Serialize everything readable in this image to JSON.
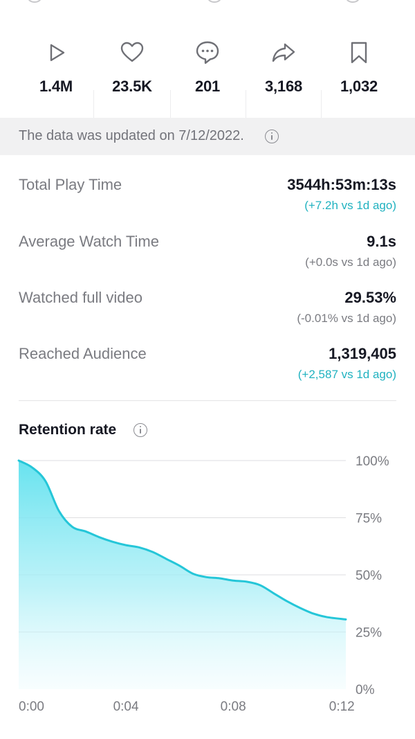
{
  "stats": [
    {
      "icon": "play-icon",
      "value": "1.4M"
    },
    {
      "icon": "heart-icon",
      "value": "23.5K"
    },
    {
      "icon": "comment-icon",
      "value": "201"
    },
    {
      "icon": "share-icon",
      "value": "3,168"
    },
    {
      "icon": "bookmark-icon",
      "value": "1,032"
    }
  ],
  "banner": {
    "text": "The data was updated on 7/12/2022."
  },
  "metrics": [
    {
      "label": "Total Play Time",
      "value": "3544h:53m:13s",
      "delta": "(+7.2h vs 1d ago)",
      "delta_color": "#20b2c0"
    },
    {
      "label": "Average Watch Time",
      "value": "9.1s",
      "delta": "(+0.0s vs 1d ago)",
      "delta_color": "#7a7b81"
    },
    {
      "label": "Watched full video",
      "value": "29.53%",
      "delta": "(-0.01% vs 1d ago)",
      "delta_color": "#7a7b81"
    },
    {
      "label": "Reached Audience",
      "value": "1,319,405",
      "delta": "(+2,587 vs 1d ago)",
      "delta_color": "#20b2c0"
    }
  ],
  "retention": {
    "title": "Retention rate"
  },
  "colors": {
    "accent": "#25c6d8",
    "positive": "#20b2c0",
    "neutral": "#7a7b81"
  },
  "chart_data": {
    "type": "area",
    "title": "Retention rate",
    "x_ticks": [
      "0:00",
      "0:04",
      "0:08",
      "0:12"
    ],
    "y_ticks": [
      "0%",
      "25%",
      "50%",
      "75%",
      "100%"
    ],
    "xlim": [
      0,
      12.2
    ],
    "ylim": [
      0,
      100
    ],
    "grid": true,
    "y_axis_position": "right",
    "series": [
      {
        "x": [
          0,
          0.5,
          1.0,
          1.5,
          2.0,
          2.5,
          3.0,
          3.5,
          4.0,
          4.5,
          5.0,
          5.5,
          6.0,
          6.5,
          7.0,
          7.5,
          8.0,
          8.5,
          9.0,
          9.5,
          10.0,
          10.5,
          11.0,
          11.5,
          12.2
        ],
        "y": [
          100,
          97,
          91,
          78,
          71,
          69,
          66.5,
          64.5,
          63,
          62,
          60,
          57,
          54,
          50.5,
          49,
          48.5,
          47.5,
          47,
          45.5,
          42,
          38.5,
          35.5,
          33,
          31.5,
          30.5
        ]
      }
    ]
  }
}
